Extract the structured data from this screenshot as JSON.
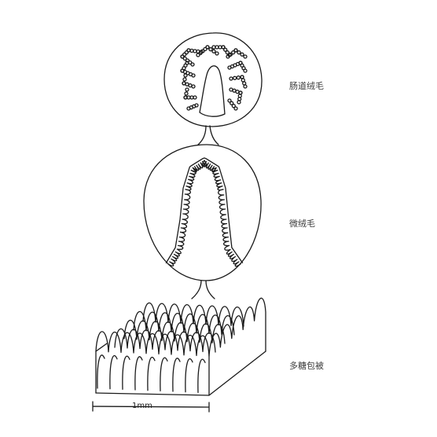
{
  "labels": {
    "top": "肠道绒毛",
    "middle": "微绒毛",
    "bottom": "多糖包被"
  },
  "scale_bar": {
    "text": "1mm"
  },
  "colors": {
    "ink": "#1a1a1a",
    "background": "#ffffff"
  }
}
